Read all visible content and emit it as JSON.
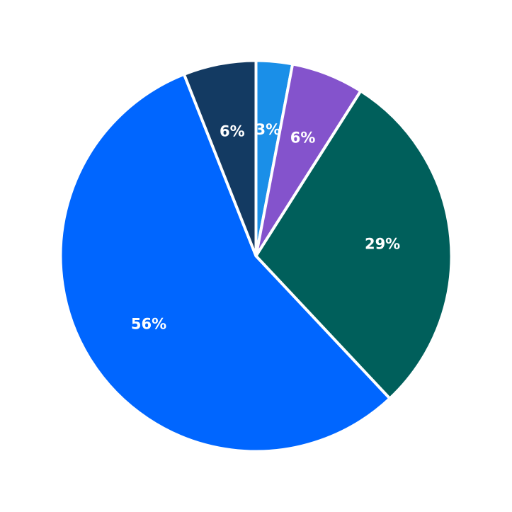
{
  "chart_data": {
    "type": "pie",
    "title": "",
    "start": "top",
    "direction": "clockwise",
    "slices": [
      {
        "value": 3,
        "label": "3%",
        "color": "#1a8fe8"
      },
      {
        "value": 6,
        "label": "6%",
        "color": "#8453cc"
      },
      {
        "value": 29,
        "label": "29%",
        "color": "#005f5b"
      },
      {
        "value": 56,
        "label": "56%",
        "color": "#0066ff"
      },
      {
        "value": 6,
        "label": "6%",
        "color": "#133a62"
      }
    ]
  }
}
